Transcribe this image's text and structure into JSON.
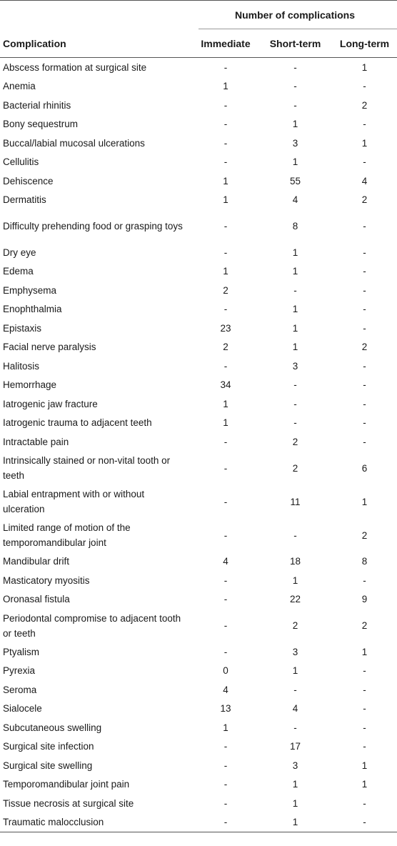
{
  "table": {
    "group_header": "Number of complications",
    "columns": [
      "Complication",
      "Immediate",
      "Short-term",
      "Long-term"
    ],
    "rows": [
      {
        "name": "Abscess formation at surgical site",
        "immediate": "-",
        "short": "-",
        "long": "1"
      },
      {
        "name": "Anemia",
        "immediate": "1",
        "short": "-",
        "long": "-"
      },
      {
        "name": "Bacterial rhinitis",
        "immediate": "-",
        "short": "-",
        "long": "2"
      },
      {
        "name": "Bony sequestrum",
        "immediate": "-",
        "short": "1",
        "long": "-"
      },
      {
        "name": "Buccal/labial mucosal ulcerations",
        "immediate": "-",
        "short": "3",
        "long": "1"
      },
      {
        "name": "Cellulitis",
        "immediate": "-",
        "short": "1",
        "long": "-"
      },
      {
        "name": "Dehiscence",
        "immediate": "1",
        "short": "55",
        "long": "4"
      },
      {
        "name": "Dermatitis",
        "immediate": "1",
        "short": "4",
        "long": "2"
      },
      {
        "name": "Difficulty prehending food or grasping toys",
        "immediate": "-",
        "short": "8",
        "long": "-"
      },
      {
        "name": "Dry eye",
        "immediate": "-",
        "short": "1",
        "long": "-"
      },
      {
        "name": "Edema",
        "immediate": "1",
        "short": "1",
        "long": "-"
      },
      {
        "name": "Emphysema",
        "immediate": "2",
        "short": "-",
        "long": "-"
      },
      {
        "name": "Enophthalmia",
        "immediate": "-",
        "short": "1",
        "long": "-"
      },
      {
        "name": "Epistaxis",
        "immediate": "23",
        "short": "1",
        "long": "-"
      },
      {
        "name": "Facial nerve paralysis",
        "immediate": "2",
        "short": "1",
        "long": "2"
      },
      {
        "name": "Halitosis",
        "immediate": "-",
        "short": "3",
        "long": "-"
      },
      {
        "name": "Hemorrhage",
        "immediate": "34",
        "short": "-",
        "long": "-"
      },
      {
        "name": "Iatrogenic jaw fracture",
        "immediate": "1",
        "short": "-",
        "long": "-"
      },
      {
        "name": "Iatrogenic trauma to adjacent teeth",
        "immediate": "1",
        "short": "-",
        "long": "-"
      },
      {
        "name": "Intractable pain",
        "immediate": "-",
        "short": "2",
        "long": "-"
      },
      {
        "name": "Intrinsically stained or non-vital tooth or teeth",
        "immediate": "-",
        "short": "2",
        "long": "6"
      },
      {
        "name": "Labial entrapment with or without ulceration",
        "immediate": "-",
        "short": "11",
        "long": "1"
      },
      {
        "name": "Limited range of motion of the temporomandibular joint",
        "immediate": "-",
        "short": "-",
        "long": "2"
      },
      {
        "name": "Mandibular drift",
        "immediate": "4",
        "short": "18",
        "long": "8"
      },
      {
        "name": "Masticatory myositis",
        "immediate": "-",
        "short": "1",
        "long": "-"
      },
      {
        "name": "Oronasal fistula",
        "immediate": "-",
        "short": "22",
        "long": "9"
      },
      {
        "name": "Periodontal compromise to adjacent tooth or teeth",
        "immediate": "-",
        "short": "2",
        "long": "2"
      },
      {
        "name": "Ptyalism",
        "immediate": "-",
        "short": "3",
        "long": "1"
      },
      {
        "name": "Pyrexia",
        "immediate": "0",
        "short": "1",
        "long": "-"
      },
      {
        "name": "Seroma",
        "immediate": "4",
        "short": "-",
        "long": "-"
      },
      {
        "name": "Sialocele",
        "immediate": "13",
        "short": "4",
        "long": "-"
      },
      {
        "name": "Subcutaneous swelling",
        "immediate": "1",
        "short": "-",
        "long": "-"
      },
      {
        "name": "Surgical site infection",
        "immediate": "-",
        "short": "17",
        "long": "-"
      },
      {
        "name": "Surgical site swelling",
        "immediate": "-",
        "short": "3",
        "long": "1"
      },
      {
        "name": "Temporomandibular joint pain",
        "immediate": "-",
        "short": "1",
        "long": "1"
      },
      {
        "name": "Tissue necrosis at surgical site",
        "immediate": "-",
        "short": "1",
        "long": "-"
      },
      {
        "name": "Traumatic malocclusion",
        "immediate": "-",
        "short": "1",
        "long": "-"
      }
    ]
  }
}
